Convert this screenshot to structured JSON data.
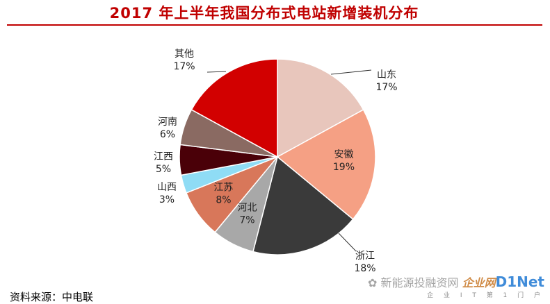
{
  "header": {
    "title": "2017 年上半年我国分布式电站新增装机分布"
  },
  "footer": {
    "source": "资料来源：中电联"
  },
  "watermark": {
    "wechat": "新能源投融资网",
    "logo": "企业网",
    "brand": "D1Net",
    "tagline": "企 业 I T 第 1 门 户"
  },
  "chart_data": {
    "type": "pie",
    "title": "2017 年上半年我国分布式电站新增装机分布",
    "start": "12 o'clock",
    "direction": "clockwise",
    "slices": [
      {
        "name": "山东",
        "value": 17,
        "label": "17%",
        "color": "#e8c6bc",
        "label_position": "outside"
      },
      {
        "name": "安徽",
        "value": 19,
        "label": "19%",
        "color": "#f5a084",
        "label_position": "inside"
      },
      {
        "name": "浙江",
        "value": 18,
        "label": "18%",
        "color": "#3a3a3a",
        "label_position": "outside"
      },
      {
        "name": "河北",
        "value": 7,
        "label": "7%",
        "color": "#a8a8a8",
        "label_position": "inside"
      },
      {
        "name": "江苏",
        "value": 8,
        "label": "8%",
        "color": "#d8775a",
        "label_position": "inside"
      },
      {
        "name": "山西",
        "value": 3,
        "label": "3%",
        "color": "#8fdcf5",
        "label_position": "outside"
      },
      {
        "name": "江西",
        "value": 5,
        "label": "5%",
        "color": "#4a0008",
        "label_position": "outside"
      },
      {
        "name": "河南",
        "value": 6,
        "label": "6%",
        "color": "#8a6a62",
        "label_position": "outside"
      },
      {
        "name": "其他",
        "value": 17,
        "label": "17%",
        "color": "#d20000",
        "label_position": "outside"
      }
    ]
  }
}
